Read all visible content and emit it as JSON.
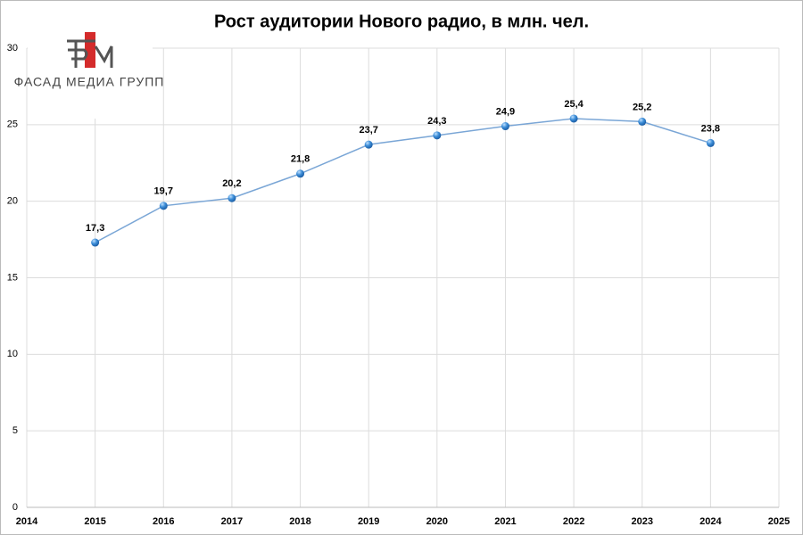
{
  "chart_data": {
    "type": "line",
    "title": "Рост аудитории Нового радио, в млн. чел.",
    "x": [
      2015,
      2016,
      2017,
      2018,
      2019,
      2020,
      2021,
      2022,
      2023,
      2024
    ],
    "values": [
      17.3,
      19.7,
      20.2,
      21.8,
      23.7,
      24.3,
      24.9,
      25.4,
      25.2,
      23.8
    ],
    "value_labels": [
      "17,3",
      "19,7",
      "20,2",
      "21,8",
      "23,7",
      "24,3",
      "24,9",
      "25,4",
      "25,2",
      "23,8"
    ],
    "color": "#7aa6d6",
    "xlim": [
      2014,
      2025
    ],
    "xticks": [
      2014,
      2015,
      2016,
      2017,
      2018,
      2019,
      2020,
      2021,
      2022,
      2023,
      2024,
      2025
    ],
    "ylim": [
      0,
      30
    ],
    "yticks": [
      0,
      5,
      10,
      15,
      20,
      25,
      30
    ],
    "grid": true
  },
  "logo": {
    "text": "ФАСАД МЕДИА ГРУПП"
  }
}
